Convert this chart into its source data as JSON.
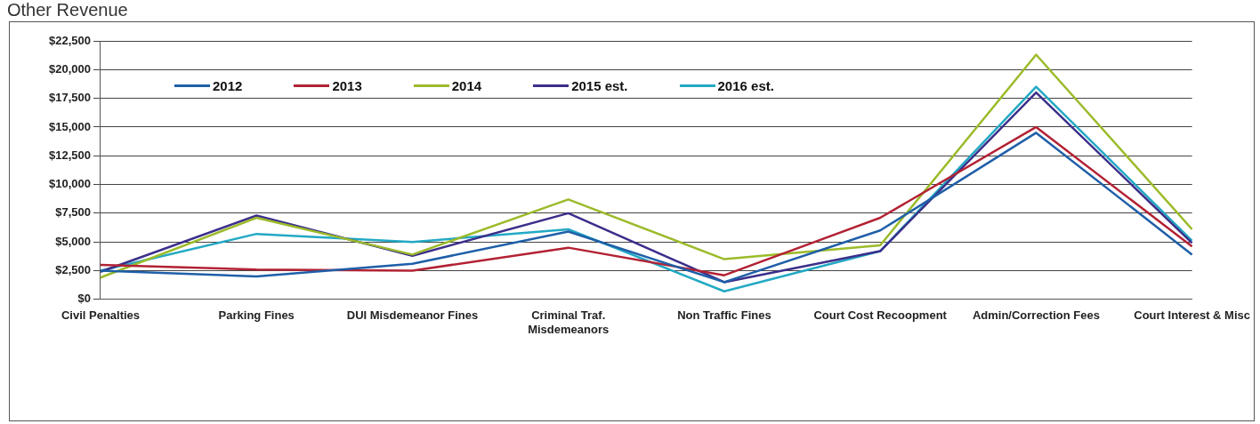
{
  "chart_data": {
    "type": "line",
    "title": "Other Revenue",
    "categories": [
      "Civil Penalties",
      "Parking Fines",
      "DUI Misdemeanor Fines",
      "Criminal Traf. Misdemeanors",
      "Non Traffic Fines",
      "Court Cost Recoopment",
      "Admin/Correction Fees",
      "Court Interest & Misc"
    ],
    "series": [
      {
        "name": "2012",
        "color": "#1f5fa8",
        "values": [
          2500,
          2000,
          3100,
          5900,
          1500,
          6000,
          14500,
          3900
        ]
      },
      {
        "name": "2013",
        "color": "#b22234",
        "values": [
          3000,
          2600,
          2500,
          4500,
          2100,
          7100,
          15000,
          4600
        ]
      },
      {
        "name": "2014",
        "color": "#9bbb2a",
        "values": [
          1900,
          7100,
          3900,
          8700,
          3500,
          4700,
          21300,
          6100
        ]
      },
      {
        "name": "2015 est.",
        "color": "#3b2f8a",
        "values": [
          2400,
          7300,
          3800,
          7500,
          1500,
          4200,
          18000,
          4900
        ]
      },
      {
        "name": "2016 est.",
        "color": "#23a9c4",
        "values": [
          2500,
          5700,
          5000,
          6100,
          700,
          4200,
          18500,
          5100
        ]
      }
    ],
    "ylim": [
      0,
      22500
    ],
    "yticks": [
      {
        "value": 0,
        "label": "$0"
      },
      {
        "value": 2500,
        "label": "$2,500"
      },
      {
        "value": 5000,
        "label": "$5,000"
      },
      {
        "value": 7500,
        "label": "$7,500"
      },
      {
        "value": 10000,
        "label": "$10,000"
      },
      {
        "value": 12500,
        "label": "$12,500"
      },
      {
        "value": 15000,
        "label": "$15,000"
      },
      {
        "value": 17500,
        "label": "$17,500"
      },
      {
        "value": 20000,
        "label": "$20,000"
      },
      {
        "value": 22500,
        "label": "$22,500"
      }
    ],
    "grid": "y",
    "legend": "top left",
    "marker": "none",
    "line_style": "solid"
  }
}
